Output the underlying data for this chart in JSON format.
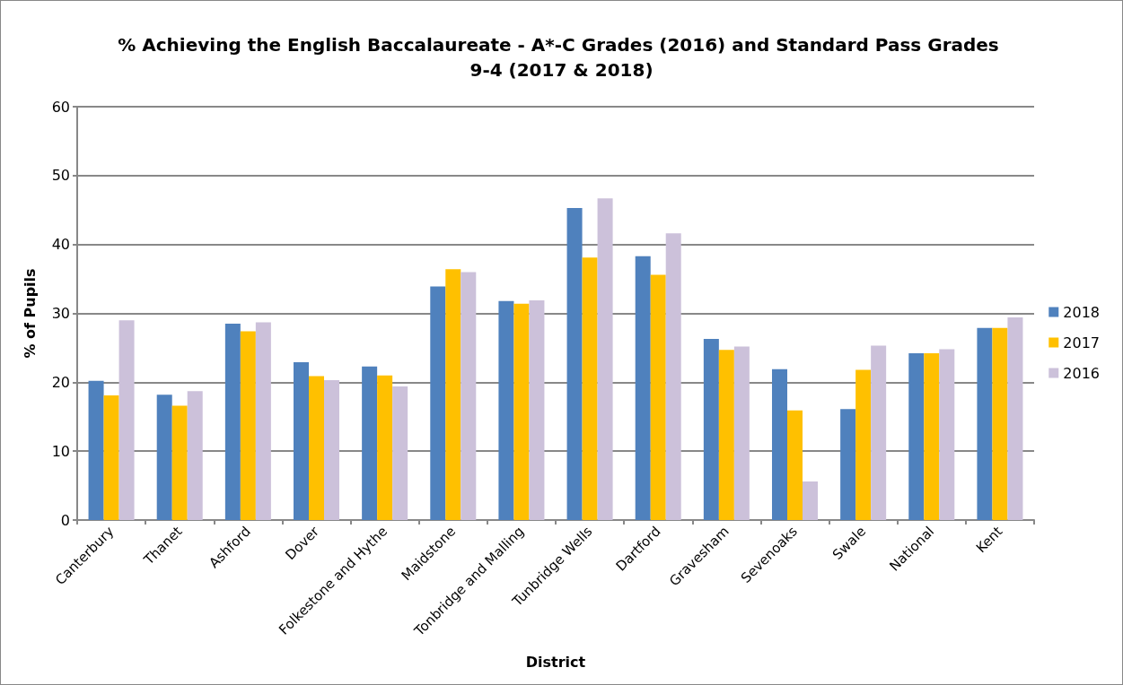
{
  "chart_data": {
    "type": "bar",
    "title": "% Achieving the English Baccalaureate - A*-C Grades (2016) and Standard Pass Grades 9-4 (2017 & 2018)",
    "xlabel": "District",
    "ylabel": "% of Pupils",
    "categories": [
      "Canterbury",
      "Thanet",
      "Ashford",
      "Dover",
      "Folkestone and Hythe",
      "Maidstone",
      "Tonbridge and Malling",
      "Tunbridge Wells",
      "Dartford",
      "Gravesham",
      "Sevenoaks",
      "Swale",
      "National",
      "Kent"
    ],
    "series": [
      {
        "name": "2018",
        "color": "#4f81bd",
        "values": [
          20.2,
          18.2,
          28.5,
          22.9,
          22.3,
          33.9,
          31.8,
          45.3,
          38.3,
          26.3,
          21.9,
          16.1,
          24.2,
          27.9
        ]
      },
      {
        "name": "2017",
        "color": "#ffc000",
        "values": [
          18.1,
          16.6,
          27.4,
          20.9,
          21.0,
          36.4,
          31.4,
          38.1,
          35.6,
          24.7,
          15.9,
          21.8,
          24.2,
          27.9
        ]
      },
      {
        "name": "2016",
        "color": "#ccc1da",
        "values": [
          29.0,
          18.7,
          28.7,
          20.3,
          19.4,
          36.0,
          31.9,
          46.7,
          41.6,
          25.2,
          5.6,
          25.3,
          24.8,
          29.4
        ]
      }
    ],
    "ylim": [
      0,
      60
    ],
    "yticks": [
      0,
      10,
      20,
      30,
      40,
      50,
      60
    ],
    "grid": "y",
    "legend": "right"
  }
}
